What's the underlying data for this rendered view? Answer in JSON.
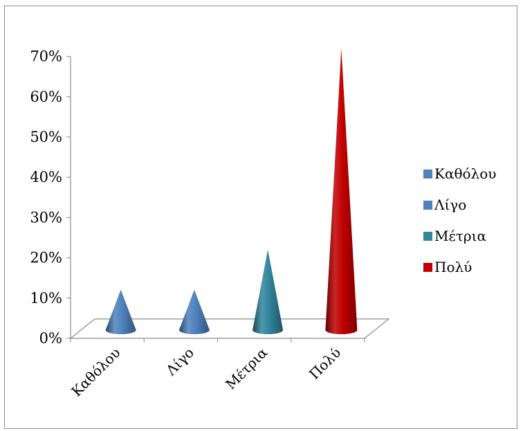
{
  "chart_data": {
    "type": "bar",
    "bar_shape": "cone-3d",
    "title": "",
    "xlabel": "",
    "ylabel": "",
    "categories": [
      "Καθόλου",
      "Λίγο",
      "Μέτρια",
      "Πολύ"
    ],
    "values": [
      10,
      10,
      20,
      70
    ],
    "ylim": [
      0,
      70
    ],
    "yticks": [
      "0%",
      "10%",
      "20%",
      "30%",
      "40%",
      "50%",
      "60%",
      "70%"
    ],
    "grid": false,
    "legend_position": "right",
    "legend": [
      {
        "label": "Καθόλου",
        "color": "#4f81bd"
      },
      {
        "label": "Λίγο",
        "color": "#4f81bd"
      },
      {
        "label": "Μέτρια",
        "color": "#31859c"
      },
      {
        "label": "Πολύ",
        "color": "#c00000"
      }
    ]
  }
}
